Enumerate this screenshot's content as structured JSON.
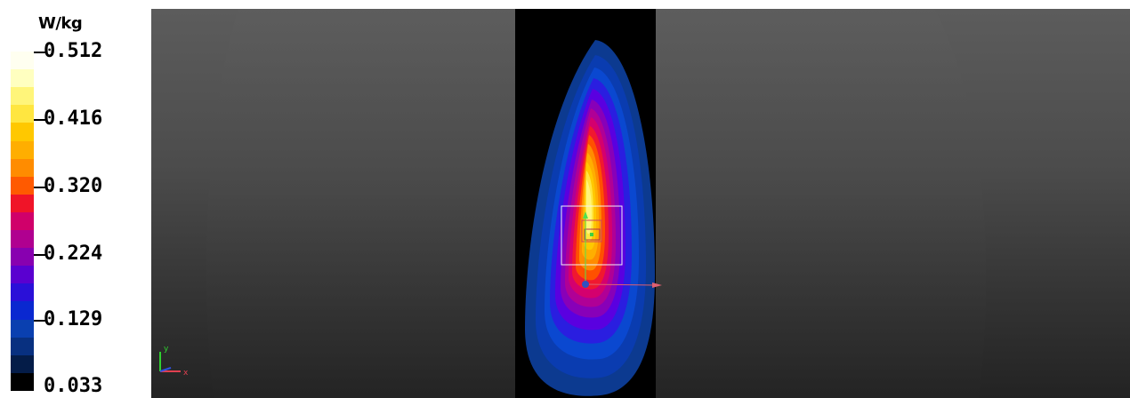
{
  "legend": {
    "unit": "W/kg",
    "tick_labels": [
      "0.512",
      "0.416",
      "0.320",
      "0.224",
      "0.129",
      "0.033"
    ],
    "colors": [
      "#fffff0",
      "#ffffc0",
      "#fff57a",
      "#ffe640",
      "#ffc800",
      "#ffae00",
      "#ff8c00",
      "#ff5a00",
      "#f01428",
      "#d0006a",
      "#b00090",
      "#8800b0",
      "#5a00d0",
      "#2a10d8",
      "#0a28d0",
      "#0a40b0",
      "#083080",
      "#041c48",
      "#000000"
    ]
  },
  "viewport": {
    "axes_triad": {
      "y_label": "y",
      "x_label": "x"
    }
  }
}
